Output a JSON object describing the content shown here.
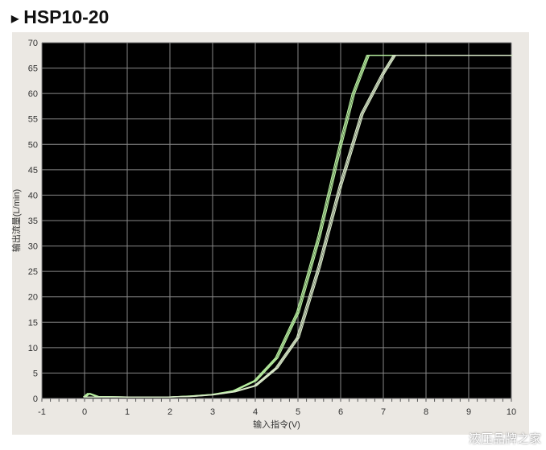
{
  "title": "HSP10-20",
  "watermark": "液压品牌之家",
  "chart_data": {
    "type": "line",
    "title": "HSP10-20",
    "xlabel": "输入指令(V)",
    "ylabel": "输出流量(L/min)",
    "xlim": [
      -1,
      10
    ],
    "ylim": [
      0,
      70
    ],
    "xticks": [
      -1,
      0,
      1,
      2,
      3,
      4,
      5,
      6,
      7,
      8,
      9,
      10
    ],
    "yticks": [
      0,
      5,
      10,
      15,
      20,
      25,
      30,
      35,
      40,
      45,
      50,
      55,
      60,
      65,
      70
    ],
    "grid": true,
    "background": "#000000",
    "series": [
      {
        "color": "#b8f0a0",
        "x": [
          0,
          0.1,
          0.3,
          1,
          2,
          2.5,
          3,
          3.5,
          4,
          4.5,
          5,
          5.5,
          6,
          6.3,
          6.64,
          7,
          8,
          9,
          10
        ],
        "y": [
          0.3,
          1,
          0.4,
          0.3,
          0.3,
          0.5,
          0.8,
          1.5,
          3.5,
          8,
          17,
          32,
          50,
          60,
          67.5,
          67.5,
          67.5,
          67.5,
          67.5
        ]
      },
      {
        "color": "#d8e8c8",
        "x": [
          0,
          1,
          2,
          2.5,
          3,
          3.5,
          4,
          4.5,
          5,
          5.5,
          6,
          6.5,
          7,
          7.26,
          8,
          9,
          10
        ],
        "y": [
          0.3,
          0.3,
          0.3,
          0.4,
          0.7,
          1.3,
          2.5,
          6,
          12,
          26,
          42,
          56,
          64,
          67.5,
          67.5,
          67.5,
          67.5
        ]
      }
    ]
  }
}
